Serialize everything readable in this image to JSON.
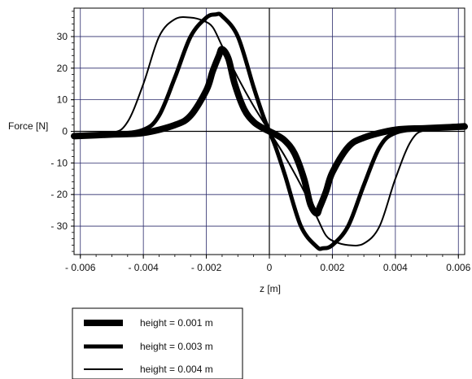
{
  "chart_data": {
    "type": "line",
    "xlabel": "z [m]",
    "ylabel": "Force [N]",
    "xlim": [
      -0.0062,
      0.0062
    ],
    "ylim": [
      -39,
      39
    ],
    "x_ticks": [
      -0.006,
      -0.004,
      -0.002,
      0,
      0.002,
      0.004,
      0.006
    ],
    "x_tick_labels": [
      "- 0.006",
      "- 0.004",
      "- 0.002",
      "0",
      "0.002",
      "0.004",
      "0.006"
    ],
    "y_ticks": [
      30,
      20,
      10,
      0,
      -10,
      -20,
      -30
    ],
    "y_tick_labels": [
      "30",
      "20",
      "10",
      "0",
      "- 10",
      "- 20",
      "- 30"
    ],
    "grid": true,
    "legend_position": "bottom-left, below plot",
    "series": [
      {
        "name": "height = 0.001 m",
        "color": "#000000",
        "x": [
          -0.0062,
          -0.005,
          -0.004,
          -0.003,
          -0.0025,
          -0.002,
          -0.0018,
          -0.0016,
          -0.0015,
          -0.0013,
          -0.0011,
          -0.0008,
          -0.0005,
          -0.0002,
          0,
          0.0002,
          0.0005,
          0.0008,
          0.0011,
          0.0013,
          0.0015,
          0.0016,
          0.0018,
          0.002,
          0.0025,
          0.003,
          0.004,
          0.005,
          0.0062
        ],
        "y": [
          -1.5,
          -1,
          -0.5,
          2,
          5,
          13,
          19,
          24,
          26,
          23,
          15,
          7,
          3,
          1,
          0,
          -1,
          -3,
          -7,
          -15,
          -23,
          -26,
          -24,
          -19,
          -13,
          -5,
          -2,
          0.5,
          1,
          1.5
        ]
      },
      {
        "name": "height = 0.003 m",
        "color": "#000000",
        "x": [
          -0.0062,
          -0.005,
          -0.004,
          -0.0035,
          -0.003,
          -0.0025,
          -0.002,
          -0.0017,
          -0.0015,
          -0.001,
          -0.0005,
          -0.0002,
          0,
          0.0002,
          0.0005,
          0.001,
          0.0015,
          0.0017,
          0.002,
          0.0025,
          0.003,
          0.0035,
          0.004,
          0.005,
          0.0062
        ],
        "y": [
          -1.5,
          -1,
          0.5,
          5,
          17,
          30,
          36,
          37,
          36.5,
          30,
          14,
          5,
          0,
          -5,
          -14,
          -30,
          -36.5,
          -37,
          -36,
          -30,
          -17,
          -5,
          -0.5,
          1,
          2
        ]
      },
      {
        "name": "height = 0.004 m",
        "color": "#000000",
        "x": [
          -0.0062,
          -0.005,
          -0.0045,
          -0.004,
          -0.0035,
          -0.003,
          -0.0025,
          -0.0021,
          -0.0018,
          -0.0015,
          -0.001,
          -0.0005,
          0,
          0.0005,
          0.001,
          0.0015,
          0.0018,
          0.0021,
          0.0025,
          0.003,
          0.0035,
          0.004,
          0.0045,
          0.005,
          0.0062
        ],
        "y": [
          -1,
          -0.5,
          3,
          15,
          30,
          35.5,
          36,
          35,
          33,
          27,
          17,
          8,
          0,
          -8,
          -17,
          -27,
          -33,
          -35,
          -36,
          -35.5,
          -30,
          -15,
          -3,
          0.5,
          1
        ]
      }
    ]
  },
  "legend": {
    "entries": [
      {
        "label": "height = 0.001 m"
      },
      {
        "label": "height = 0.003 m"
      },
      {
        "label": "height = 0.004 m"
      }
    ]
  }
}
